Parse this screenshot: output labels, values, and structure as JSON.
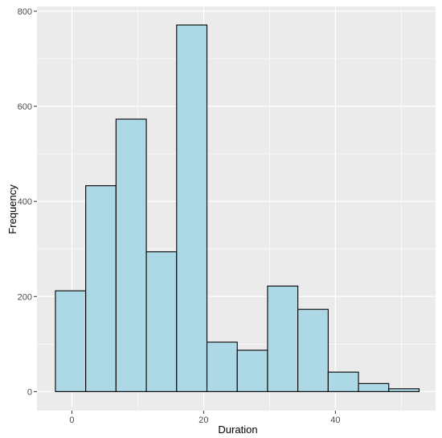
{
  "chart_data": {
    "type": "bar",
    "title": "",
    "xlabel": "Duration",
    "ylabel": "Frequency",
    "xlim": [
      -5.3,
      55.2
    ],
    "ylim": [
      -40,
      810
    ],
    "x_ticks": [
      0,
      20,
      40
    ],
    "y_ticks": [
      0,
      200,
      400,
      600,
      800
    ],
    "bins": [
      {
        "x0": -2.5,
        "x1": 2.1,
        "value": 212
      },
      {
        "x0": 2.1,
        "x1": 6.7,
        "value": 433
      },
      {
        "x0": 6.7,
        "x1": 11.3,
        "value": 573
      },
      {
        "x0": 11.3,
        "x1": 15.9,
        "value": 294
      },
      {
        "x0": 15.9,
        "x1": 20.5,
        "value": 771
      },
      {
        "x0": 20.5,
        "x1": 25.1,
        "value": 104
      },
      {
        "x0": 25.1,
        "x1": 29.7,
        "value": 87
      },
      {
        "x0": 29.7,
        "x1": 34.3,
        "value": 222
      },
      {
        "x0": 34.3,
        "x1": 38.9,
        "value": 173
      },
      {
        "x0": 38.9,
        "x1": 43.5,
        "value": 41
      },
      {
        "x0": 43.5,
        "x1": 48.1,
        "value": 17
      },
      {
        "x0": 48.1,
        "x1": 52.7,
        "value": 6
      }
    ],
    "grid": true,
    "colors": {
      "panel": "#ebebeb",
      "grid": "#ffffff",
      "bar_fill": "#add8e6",
      "bar_stroke": "#000000",
      "tick": "#333333"
    }
  }
}
